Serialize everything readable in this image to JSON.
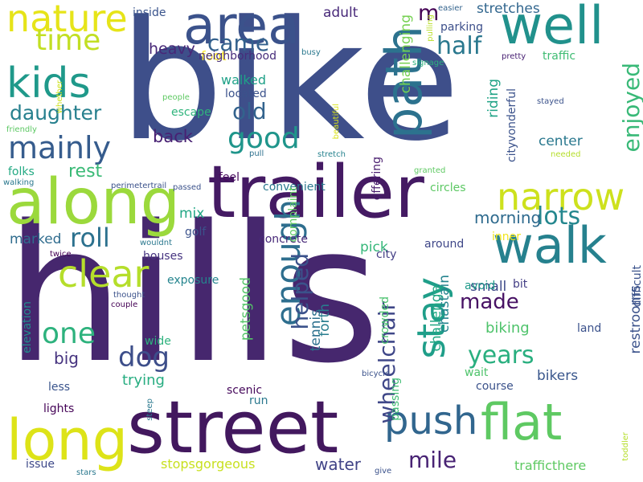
{
  "words": [
    {
      "text": "bike",
      "color": "#3e4f8a",
      "rotate": 0
    },
    {
      "text": "hills",
      "color": "#46276e",
      "rotate": 0
    },
    {
      "text": "street",
      "color": "#42185e",
      "rotate": 0
    },
    {
      "text": "trailer",
      "color": "#441a63",
      "rotate": 0
    },
    {
      "text": "along",
      "color": "#9bd93c",
      "rotate": 0
    },
    {
      "text": "long",
      "color": "#dde318",
      "rotate": 0
    },
    {
      "text": "area",
      "color": "#3b528b",
      "rotate": 0
    },
    {
      "text": "well",
      "color": "#21918c",
      "rotate": 0
    },
    {
      "text": "flat",
      "color": "#5ec962",
      "rotate": 0
    },
    {
      "text": "walk",
      "color": "#26818e",
      "rotate": 0
    },
    {
      "text": "path",
      "color": "#2c728e",
      "rotate": 90
    },
    {
      "text": "narrow",
      "color": "#cde11d",
      "rotate": 0
    },
    {
      "text": "kids",
      "color": "#1f998a",
      "rotate": 0
    },
    {
      "text": "nature",
      "color": "#e6e419",
      "rotate": 0
    },
    {
      "text": "clear",
      "color": "#b5de2b",
      "rotate": 0
    },
    {
      "text": "stay",
      "color": "#1f9e89",
      "rotate": 90
    },
    {
      "text": "enough",
      "color": "#2e6e8e",
      "rotate": 90
    },
    {
      "text": "push",
      "color": "#31668e",
      "rotate": 0
    },
    {
      "text": "mainly",
      "color": "#365c8d",
      "rotate": 0
    },
    {
      "text": "time",
      "color": "#c2df23",
      "rotate": 0
    },
    {
      "text": "daughter",
      "color": "#27808e",
      "rotate": 0
    },
    {
      "text": "wheelchair",
      "color": "#3f4788",
      "rotate": 90
    },
    {
      "text": "helped",
      "color": "#3b528b",
      "rotate": 90
    },
    {
      "text": "made",
      "color": "#471164",
      "rotate": 0
    },
    {
      "text": "mile",
      "color": "#482374",
      "rotate": 0
    },
    {
      "text": "good",
      "color": "#1f958b",
      "rotate": 0
    },
    {
      "text": "one",
      "color": "#2db27d",
      "rotate": 0
    },
    {
      "text": "years",
      "color": "#29af7f",
      "rotate": 0
    },
    {
      "text": "enjoyed",
      "color": "#38b977",
      "rotate": 90
    },
    {
      "text": "dog",
      "color": "#3d4e8a",
      "rotate": 0
    },
    {
      "text": "roll",
      "color": "#2c718e",
      "rotate": 0
    },
    {
      "text": "old",
      "color": "#33638d",
      "rotate": 0
    },
    {
      "text": "came",
      "color": "#34618d",
      "rotate": 0
    },
    {
      "text": "half",
      "color": "#2a788e",
      "rotate": 0
    },
    {
      "text": "lots",
      "color": "#24878e",
      "rotate": 0
    },
    {
      "text": "morning",
      "color": "#2f6b8e",
      "rotate": 0
    },
    {
      "text": "water",
      "color": "#414487",
      "rotate": 0
    },
    {
      "text": "m",
      "color": "#440154",
      "rotate": 0
    },
    {
      "text": "back",
      "color": "#482173",
      "rotate": 0
    },
    {
      "text": "rest",
      "color": "#3aba76",
      "rotate": 0
    },
    {
      "text": "heavy",
      "color": "#482878",
      "rotate": 0
    },
    {
      "text": "foot",
      "color": "#fde725",
      "rotate": 0
    },
    {
      "text": "walked",
      "color": "#1fa188",
      "rotate": 0
    },
    {
      "text": "trying",
      "color": "#27ad81",
      "rotate": 0
    },
    {
      "text": "biking",
      "color": "#4ec36b",
      "rotate": 0
    },
    {
      "text": "bikers",
      "color": "#39568c",
      "rotate": 0
    },
    {
      "text": "restrooms",
      "color": "#3b528b",
      "rotate": 90
    },
    {
      "text": "marked",
      "color": "#2f6c8e",
      "rotate": 0
    },
    {
      "text": "challenge",
      "color": "#22a884",
      "rotate": 90
    },
    {
      "text": "chastain",
      "color": "#25848e",
      "rotate": 90
    },
    {
      "text": "challenging",
      "color": "#77d153",
      "rotate": 90
    },
    {
      "text": "riding",
      "color": "#20a386",
      "rotate": 90
    },
    {
      "text": "center",
      "color": "#2a788e",
      "rotate": 0
    },
    {
      "text": "stretches",
      "color": "#31668e",
      "rotate": 0
    },
    {
      "text": "forth",
      "color": "#287d8e",
      "rotate": 90
    },
    {
      "text": "petsgood",
      "color": "#54c568",
      "rotate": 90
    },
    {
      "text": "tennis",
      "color": "#2d718e",
      "rotate": 90
    },
    {
      "text": "pick",
      "color": "#35b779",
      "rotate": 0
    },
    {
      "text": "big",
      "color": "#46337f",
      "rotate": 0
    },
    {
      "text": "elevation",
      "color": "#228c8d",
      "rotate": 90
    },
    {
      "text": "small",
      "color": "#3e4a89",
      "rotate": 0
    },
    {
      "text": "mix",
      "color": "#22a785",
      "rotate": 0
    },
    {
      "text": "adult",
      "color": "#482979",
      "rotate": 0
    },
    {
      "text": "inside",
      "color": "#3a548c",
      "rotate": 0
    },
    {
      "text": "located",
      "color": "#3b528b",
      "rotate": 0
    },
    {
      "text": "escape",
      "color": "#2fb47c",
      "rotate": 0
    },
    {
      "text": "parking",
      "color": "#3c4f8a",
      "rotate": 0
    },
    {
      "text": "neighborhood",
      "color": "#472d7b",
      "rotate": 0
    },
    {
      "text": "folks",
      "color": "#23a983",
      "rotate": 0
    },
    {
      "text": "feel",
      "color": "#46085c",
      "rotate": 0
    },
    {
      "text": "convenient",
      "color": "#2a788e",
      "rotate": 0
    },
    {
      "text": "circles",
      "color": "#5cc863",
      "rotate": 0
    },
    {
      "text": "golf",
      "color": "#3b528b",
      "rotate": 0
    },
    {
      "text": "houses",
      "color": "#463480",
      "rotate": 0
    },
    {
      "text": "exposure",
      "color": "#25858e",
      "rotate": 0
    },
    {
      "text": "concrete",
      "color": "#482979",
      "rotate": 0
    },
    {
      "text": "around",
      "color": "#3f4788",
      "rotate": 0
    },
    {
      "text": "offering",
      "color": "#481c6e",
      "rotate": 90
    },
    {
      "text": "complaint",
      "color": "#5ec962",
      "rotate": 90
    },
    {
      "text": "city",
      "color": "#433e85",
      "rotate": 0
    },
    {
      "text": "crowded",
      "color": "#4ac16d",
      "rotate": 90
    },
    {
      "text": "passing",
      "color": "#3fbc73",
      "rotate": 90
    },
    {
      "text": "bit",
      "color": "#433e85",
      "rotate": 0
    },
    {
      "text": "avoid",
      "color": "#1f9a8a",
      "rotate": 0
    },
    {
      "text": "land",
      "color": "#3b518b",
      "rotate": 0
    },
    {
      "text": "wait",
      "color": "#4ec36b",
      "rotate": 0
    },
    {
      "text": "course",
      "color": "#3b528b",
      "rotate": 0
    },
    {
      "text": "scenic",
      "color": "#45085b",
      "rotate": 0
    },
    {
      "text": "run",
      "color": "#2a788e",
      "rotate": 0
    },
    {
      "text": "wide",
      "color": "#2db27d",
      "rotate": 0
    },
    {
      "text": "less",
      "color": "#3a548c",
      "rotate": 0
    },
    {
      "text": "lights",
      "color": "#450457",
      "rotate": 0
    },
    {
      "text": "issue",
      "color": "#3e4989",
      "rotate": 0
    },
    {
      "text": "stopsgorgeous",
      "color": "#c8e020",
      "rotate": 0
    },
    {
      "text": "trafficthere",
      "color": "#5ec962",
      "rotate": 0
    },
    {
      "text": "traffic",
      "color": "#3fbc73",
      "rotate": 0
    },
    {
      "text": "cityvonderful",
      "color": "#3b528b",
      "rotate": 90
    },
    {
      "text": "difficult",
      "color": "#3b528b",
      "rotate": 90
    },
    {
      "text": "inner",
      "color": "#f1e51d",
      "rotate": 0
    },
    {
      "text": "pretty",
      "color": "#482173",
      "rotate": 0
    },
    {
      "text": "signage",
      "color": "#2db27d",
      "rotate": 0
    },
    {
      "text": "pulling",
      "color": "#b8de29",
      "rotate": 90
    },
    {
      "text": "easier",
      "color": "#33638d",
      "rotate": 0
    },
    {
      "text": "busy",
      "color": "#2a788e",
      "rotate": 0
    },
    {
      "text": "beautiful",
      "color": "#dae319",
      "rotate": 90
    },
    {
      "text": "stretch",
      "color": "#26828e",
      "rotate": 0
    },
    {
      "text": "pull",
      "color": "#2d708e",
      "rotate": 0
    },
    {
      "text": "people",
      "color": "#5ec962",
      "rotate": 0
    },
    {
      "text": "whether",
      "color": "#cde11d",
      "rotate": 90
    },
    {
      "text": "friendly",
      "color": "#5cc863",
      "rotate": 0
    },
    {
      "text": "walking",
      "color": "#2a788e",
      "rotate": 0
    },
    {
      "text": "perimetertrail",
      "color": "#3b528b",
      "rotate": 0
    },
    {
      "text": "passed",
      "color": "#3b528b",
      "rotate": 0
    },
    {
      "text": "stayed",
      "color": "#3b528b",
      "rotate": 0
    },
    {
      "text": "needed",
      "color": "#b5de2b",
      "rotate": 0
    },
    {
      "text": "granted",
      "color": "#5ec962",
      "rotate": 0
    },
    {
      "text": "wouldnt",
      "color": "#2a788e",
      "rotate": 0
    },
    {
      "text": "twice",
      "color": "#440154",
      "rotate": 0
    },
    {
      "text": "thought",
      "color": "#3b528b",
      "rotate": 0
    },
    {
      "text": "couple",
      "color": "#440154",
      "rotate": 0
    },
    {
      "text": "bicycle",
      "color": "#3b528b",
      "rotate": 0
    },
    {
      "text": "steep",
      "color": "#2a788e",
      "rotate": 90
    },
    {
      "text": "stars",
      "color": "#2a788e",
      "rotate": 0
    },
    {
      "text": "give",
      "color": "#3b528b",
      "rotate": 0
    },
    {
      "text": "toddler",
      "color": "#b5de2b",
      "rotate": 90
    }
  ]
}
